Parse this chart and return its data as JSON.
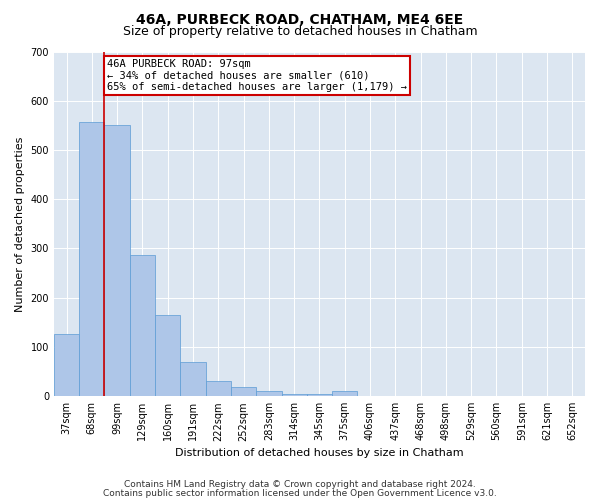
{
  "title": "46A, PURBECK ROAD, CHATHAM, ME4 6EE",
  "subtitle": "Size of property relative to detached houses in Chatham",
  "xlabel": "Distribution of detached houses by size in Chatham",
  "ylabel": "Number of detached properties",
  "categories": [
    "37sqm",
    "68sqm",
    "99sqm",
    "129sqm",
    "160sqm",
    "191sqm",
    "222sqm",
    "252sqm",
    "283sqm",
    "314sqm",
    "345sqm",
    "375sqm",
    "406sqm",
    "437sqm",
    "468sqm",
    "498sqm",
    "529sqm",
    "560sqm",
    "591sqm",
    "621sqm",
    "652sqm"
  ],
  "values": [
    127,
    557,
    550,
    287,
    165,
    70,
    30,
    18,
    10,
    5,
    5,
    10,
    0,
    0,
    0,
    0,
    0,
    0,
    0,
    0,
    0
  ],
  "bar_color": "#aec6e8",
  "bar_edge_color": "#5b9bd5",
  "annotation_text": "46A PURBECK ROAD: 97sqm\n← 34% of detached houses are smaller (610)\n65% of semi-detached houses are larger (1,179) →",
  "annotation_box_color": "#ffffff",
  "annotation_border_color": "#cc0000",
  "footer_line1": "Contains HM Land Registry data © Crown copyright and database right 2024.",
  "footer_line2": "Contains public sector information licensed under the Open Government Licence v3.0.",
  "ylim": [
    0,
    700
  ],
  "yticks": [
    0,
    100,
    200,
    300,
    400,
    500,
    600,
    700
  ],
  "title_fontsize": 10,
  "subtitle_fontsize": 9,
  "axis_label_fontsize": 8,
  "tick_fontsize": 7,
  "annotation_fontsize": 7.5,
  "footer_fontsize": 6.5,
  "background_color": "#ffffff",
  "plot_bg_color": "#dce6f1",
  "red_line_color": "#cc0000",
  "red_line_x": 1.5
}
